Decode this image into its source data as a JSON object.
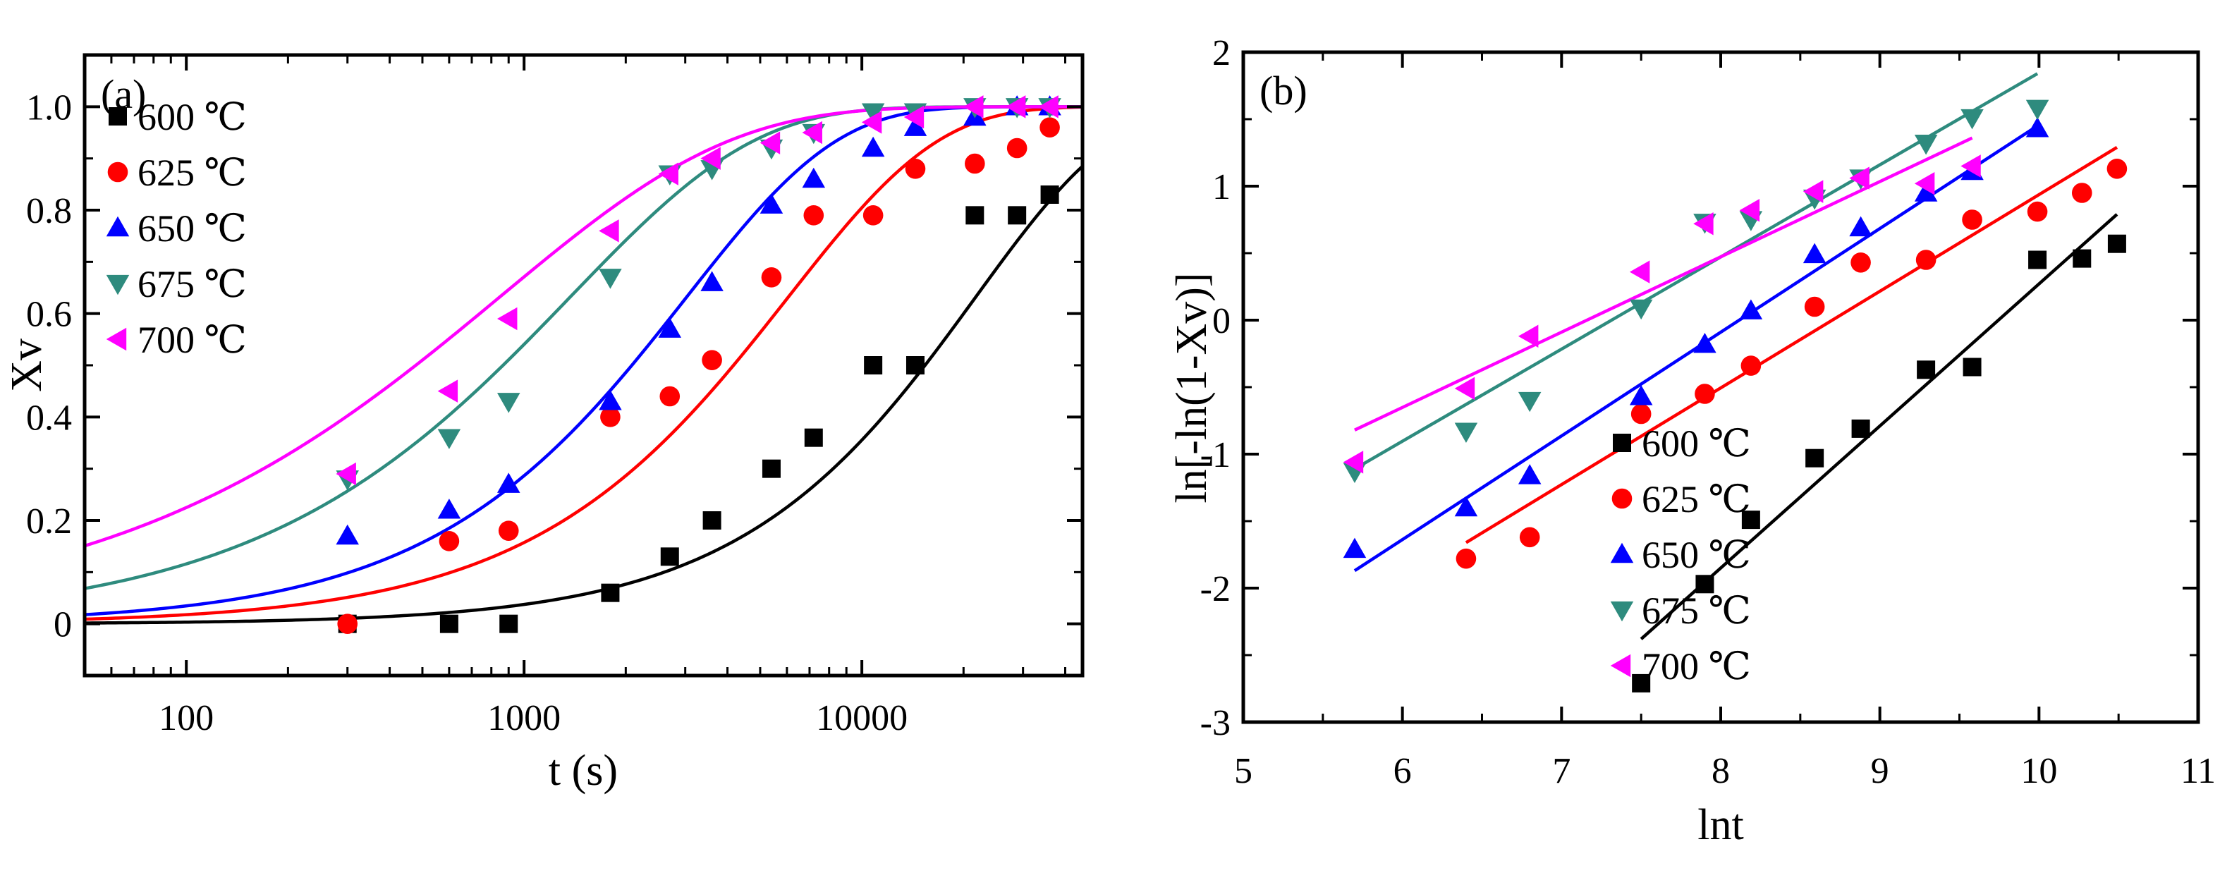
{
  "chart_data": [
    {
      "type": "scatter",
      "panel_label": "(a)",
      "xlabel": "t (s)",
      "ylabel": "Xv",
      "xscale": "log",
      "xlim": [
        50,
        45000
      ],
      "ylim": [
        -0.1,
        1.1
      ],
      "xticks": [
        {
          "value": 100,
          "label": "100"
        },
        {
          "value": 1000,
          "label": "1000"
        },
        {
          "value": 10000,
          "label": "10000"
        }
      ],
      "yticks": [
        {
          "value": 0,
          "label": "0"
        },
        {
          "value": 0.2,
          "label": "0.2"
        },
        {
          "value": 0.4,
          "label": "0.4"
        },
        {
          "value": 0.6,
          "label": "0.6"
        },
        {
          "value": 0.8,
          "label": "0.8"
        },
        {
          "value": 1.0,
          "label": "1.0"
        }
      ],
      "grid": false,
      "legend_position": "top-left",
      "series": [
        {
          "name": "600 ℃",
          "marker": "square",
          "color": "#000000",
          "x": [
            300,
            600,
            900,
            1800,
            2700,
            3600,
            5400,
            7200,
            10800,
            14400,
            21600,
            28800,
            36000
          ],
          "y": [
            0,
            0,
            0,
            0.06,
            0.13,
            0.2,
            0.3,
            0.36,
            0.5,
            0.5,
            0.79,
            0.79,
            0.83
          ],
          "fit_curve": {
            "k": 4.6e-05,
            "n": 1.06
          }
        },
        {
          "name": "625 ℃",
          "marker": "circle",
          "color": "#ff0000",
          "x": [
            300,
            600,
            900,
            1800,
            2700,
            3600,
            5400,
            7200,
            10800,
            14400,
            21600,
            28800,
            36000
          ],
          "y": [
            0,
            0.16,
            0.18,
            0.4,
            0.44,
            0.51,
            0.67,
            0.79,
            0.79,
            0.88,
            0.89,
            0.92,
            0.96
          ],
          "fit_curve": {
            "k": 0.000165,
            "n": 0.98
          }
        },
        {
          "name": "650 ℃",
          "marker": "triangle-up",
          "color": "#0000ff",
          "x": [
            300,
            600,
            900,
            1800,
            2700,
            3600,
            5400,
            7200,
            10800,
            14400,
            21600,
            28800,
            36000
          ],
          "y": [
            0.17,
            0.22,
            0.27,
            0.43,
            0.57,
            0.66,
            0.81,
            0.86,
            0.92,
            0.96,
            0.98,
            1.0,
            1.0
          ],
          "fit_curve": {
            "k": 0.00033,
            "n": 0.98
          }
        },
        {
          "name": "675 ℃",
          "marker": "triangle-down",
          "color": "#2e8b7e",
          "x": [
            300,
            600,
            900,
            1800,
            2700,
            3600,
            5400,
            7200,
            10800,
            14400,
            21600,
            28800,
            36000
          ],
          "y": [
            0.28,
            0.36,
            0.43,
            0.67,
            0.87,
            0.88,
            0.92,
            0.95,
            0.99,
            0.99,
            1.0,
            1.0,
            1.0
          ],
          "fit_curve": {
            "k": 0.00073,
            "n": 0.8
          }
        },
        {
          "name": "700 ℃",
          "marker": "triangle-left",
          "color": "#ff00ff",
          "x": [
            300,
            600,
            900,
            1800,
            2700,
            3600,
            5400,
            7200,
            10800,
            14400,
            21600,
            28800,
            36000
          ],
          "y": [
            0.29,
            0.45,
            0.59,
            0.76,
            0.87,
            0.9,
            0.93,
            0.95,
            0.97,
            0.98,
            1.0,
            1.0,
            1.0
          ],
          "fit_curve": {
            "k": 0.00118,
            "n": 0.64
          }
        }
      ]
    },
    {
      "type": "scatter",
      "panel_label": "(b)",
      "xlabel": "lnt",
      "ylabel": "ln[-ln(1-Xv)]",
      "xscale": "linear",
      "xlim": [
        5,
        11
      ],
      "ylim": [
        -3,
        2
      ],
      "xticks": [
        {
          "value": 5,
          "label": "5"
        },
        {
          "value": 6,
          "label": "6"
        },
        {
          "value": 7,
          "label": "7"
        },
        {
          "value": 8,
          "label": "8"
        },
        {
          "value": 9,
          "label": "9"
        },
        {
          "value": 10,
          "label": "10"
        },
        {
          "value": 11,
          "label": "11"
        }
      ],
      "yticks": [
        {
          "value": -3,
          "label": "-3"
        },
        {
          "value": -2,
          "label": "-2"
        },
        {
          "value": -1,
          "label": "-1"
        },
        {
          "value": 0,
          "label": "0"
        },
        {
          "value": 1,
          "label": "1"
        },
        {
          "value": 2,
          "label": "2"
        }
      ],
      "grid": false,
      "legend_position": "bottom-right",
      "series": [
        {
          "name": "600 ℃",
          "marker": "square",
          "color": "#000000",
          "x": [
            7.5,
            7.9,
            8.19,
            8.59,
            8.88,
            9.29,
            9.58,
            9.99,
            10.27,
            10.49
          ],
          "y": [
            -2.71,
            -1.97,
            -1.49,
            -1.03,
            -0.81,
            -0.37,
            -0.35,
            0.45,
            0.46,
            0.57
          ],
          "fit_line": {
            "x": [
              7.5,
              10.49
            ],
            "y": [
              -2.38,
              0.79
            ]
          }
        },
        {
          "name": "625 ℃",
          "marker": "circle",
          "color": "#ff0000",
          "x": [
            6.4,
            6.8,
            7.5,
            7.9,
            8.19,
            8.59,
            8.88,
            9.29,
            9.58,
            9.99,
            10.27,
            10.49
          ],
          "y": [
            -1.78,
            -1.62,
            -0.7,
            -0.55,
            -0.34,
            0.1,
            0.43,
            0.45,
            0.75,
            0.81,
            0.95,
            1.13
          ],
          "fit_line": {
            "x": [
              6.4,
              10.49
            ],
            "y": [
              -1.66,
              1.29
            ]
          }
        },
        {
          "name": "650 ℃",
          "marker": "triangle-up",
          "color": "#0000ff",
          "x": [
            5.7,
            6.4,
            6.8,
            7.5,
            7.9,
            8.19,
            8.59,
            8.88,
            9.29,
            9.58,
            9.99
          ],
          "y": [
            -1.71,
            -1.4,
            -1.16,
            -0.57,
            -0.18,
            0.07,
            0.49,
            0.69,
            0.95,
            1.11,
            1.43
          ],
          "fit_line": {
            "x": [
              5.7,
              9.99
            ],
            "y": [
              -1.87,
              1.45
            ]
          }
        },
        {
          "name": "675 ℃",
          "marker": "triangle-down",
          "color": "#2e8b7e",
          "x": [
            5.7,
            6.4,
            6.8,
            7.5,
            7.9,
            8.19,
            8.59,
            8.88,
            9.29,
            9.58,
            9.99
          ],
          "y": [
            -1.13,
            -0.83,
            -0.6,
            0.09,
            0.73,
            0.75,
            0.91,
            1.06,
            1.32,
            1.51,
            1.58
          ],
          "fit_line": {
            "x": [
              5.7,
              9.99
            ],
            "y": [
              -1.11,
              1.84
            ]
          }
        },
        {
          "name": "700 ℃",
          "marker": "triangle-left",
          "color": "#ff00ff",
          "x": [
            5.7,
            6.4,
            6.8,
            7.5,
            7.9,
            8.19,
            8.59,
            8.88,
            9.29,
            9.58
          ],
          "y": [
            -1.06,
            -0.51,
            -0.12,
            0.36,
            0.72,
            0.82,
            0.96,
            1.06,
            1.02,
            1.15
          ],
          "fit_line": {
            "x": [
              5.7,
              9.58
            ],
            "y": [
              -0.82,
              1.36
            ]
          }
        }
      ]
    }
  ]
}
